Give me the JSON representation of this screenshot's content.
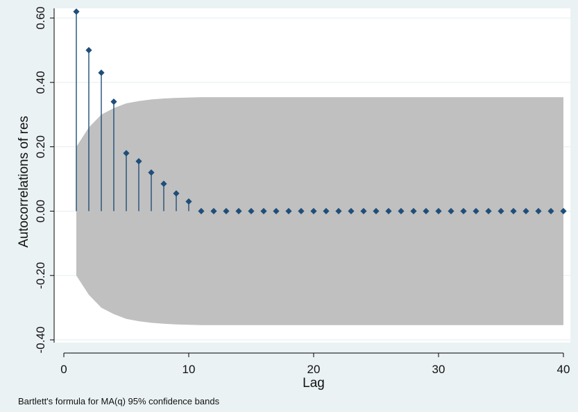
{
  "chart_data": {
    "type": "scatter",
    "subtype": "autocorrelation-stem",
    "title": "",
    "xlabel": "Lag",
    "ylabel": "Autocorrelations of res",
    "note": "Bartlett's formula for MA(q) 95% confidence bands",
    "xlim": [
      0,
      40
    ],
    "ylim": [
      -0.4,
      0.6
    ],
    "xticks": [
      0,
      10,
      20,
      30,
      40
    ],
    "yticks": [
      "-0.40",
      "-0.20",
      "0.00",
      "0.20",
      "0.40",
      "0.60"
    ],
    "grid": "horizontal",
    "series": [
      {
        "x": [
          1,
          2,
          3,
          4,
          5,
          6,
          7,
          8,
          9,
          10,
          11,
          12,
          13,
          14,
          15,
          16,
          17,
          18,
          19,
          20,
          21,
          22,
          23,
          24,
          25,
          26,
          27,
          28,
          29,
          30,
          31,
          32,
          33,
          34,
          35,
          36,
          37,
          38,
          39,
          40
        ],
        "values": [
          0.62,
          0.5,
          0.43,
          0.34,
          0.18,
          0.155,
          0.12,
          0.085,
          0.055,
          0.03,
          0,
          0,
          0,
          0,
          0,
          0,
          0,
          0,
          0,
          0,
          0,
          0,
          0,
          0,
          0,
          0,
          0,
          0,
          0,
          0,
          0,
          0,
          0,
          0,
          0,
          0,
          0,
          0,
          0,
          0
        ]
      }
    ],
    "confidence_band": {
      "x": [
        1,
        2,
        3,
        4,
        5,
        6,
        7,
        8,
        9,
        10,
        11,
        12,
        13,
        14,
        15,
        16,
        17,
        18,
        19,
        20,
        21,
        22,
        23,
        24,
        25,
        26,
        27,
        28,
        29,
        30,
        31,
        32,
        33,
        34,
        35,
        36,
        37,
        38,
        39,
        40
      ],
      "upper": [
        0.2,
        0.26,
        0.3,
        0.32,
        0.335,
        0.342,
        0.347,
        0.35,
        0.352,
        0.353,
        0.354,
        0.354,
        0.354,
        0.354,
        0.354,
        0.354,
        0.354,
        0.354,
        0.354,
        0.354,
        0.354,
        0.354,
        0.354,
        0.354,
        0.354,
        0.354,
        0.354,
        0.354,
        0.354,
        0.354,
        0.354,
        0.354,
        0.354,
        0.354,
        0.354,
        0.354,
        0.354,
        0.354,
        0.354,
        0.354
      ]
    },
    "colors": {
      "marker": "#1f4e79",
      "band": "#c0c0c0",
      "plot_background": "#ffffff",
      "figure_background": "#eaf2f3",
      "grid": "#e6eef0"
    }
  }
}
